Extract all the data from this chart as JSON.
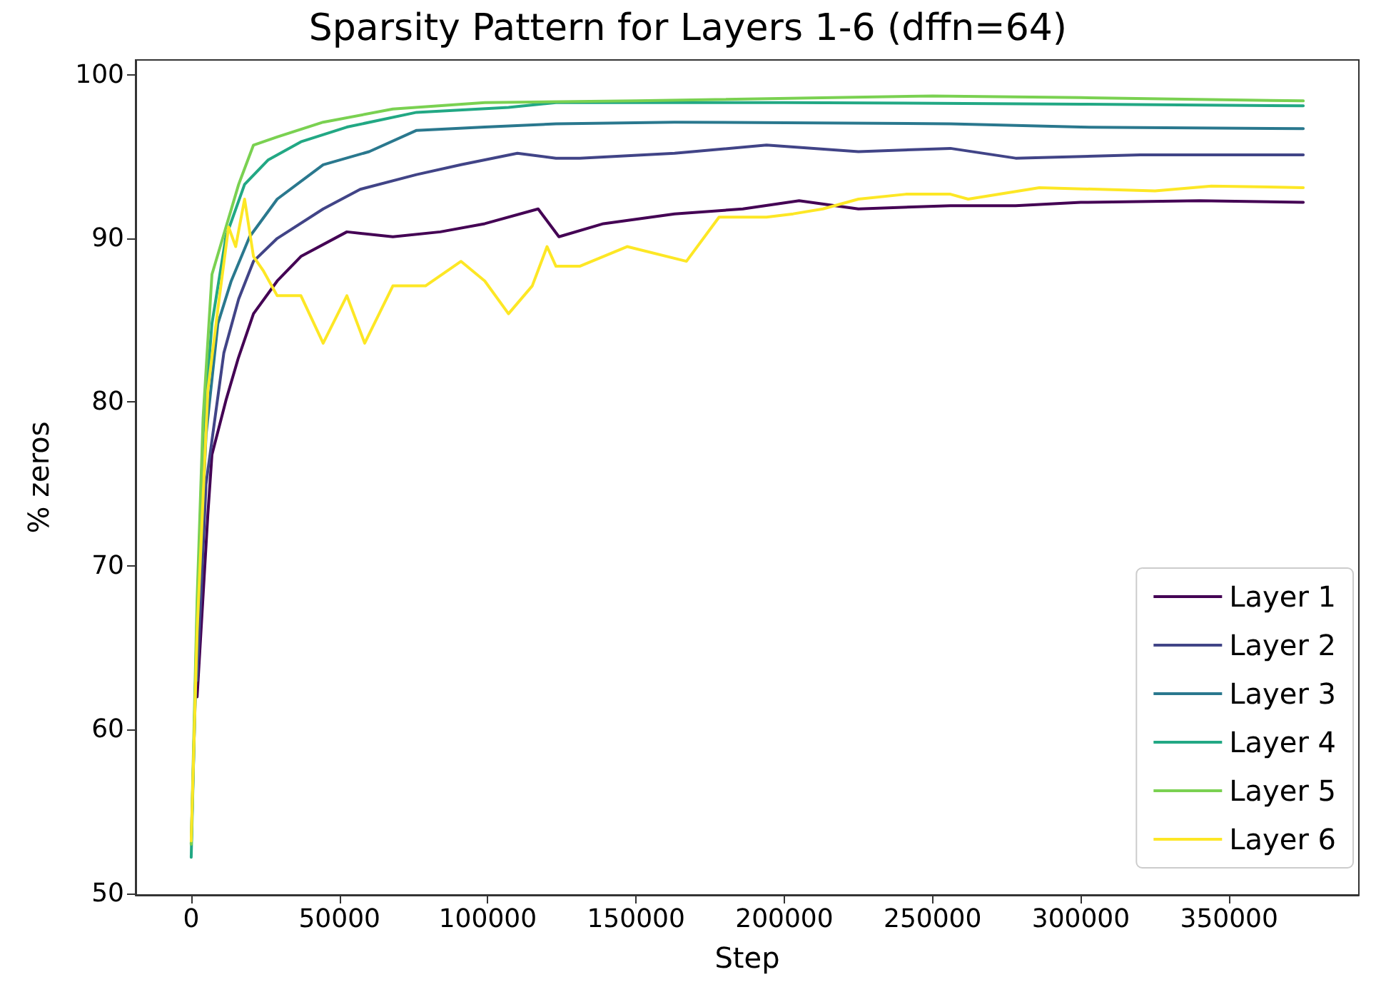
{
  "chart_data": {
    "type": "line",
    "title": "Sparsity Pattern for Layers 1-6 (dffn=64)",
    "xlabel": "Step",
    "ylabel": "% zeros",
    "xlim": [
      -18750,
      393750
    ],
    "xticks": [
      0,
      50000,
      100000,
      150000,
      200000,
      250000,
      300000,
      350000
    ],
    "ylim": [
      49.9,
      100.9
    ],
    "yticks": [
      50,
      60,
      70,
      80,
      90,
      100
    ],
    "grid": false,
    "legend": "bottom right",
    "marker": "none",
    "line_style": "solid",
    "series": [
      {
        "name": "Layer 1",
        "color": "#440154",
        "x": [
          2000,
          5600,
          7000,
          11700,
          15900,
          21000,
          29000,
          37000,
          52500,
          68000,
          84000,
          99000,
          117000,
          124000,
          139000,
          163000,
          186000,
          205000,
          225000,
          256000,
          278000,
          300000,
          340000,
          375000
        ],
        "values": [
          62,
          73.1,
          76.8,
          80.1,
          82.7,
          85.4,
          87.4,
          88.9,
          90.4,
          90.1,
          90.4,
          90.9,
          91.8,
          90.1,
          90.9,
          91.5,
          91.8,
          92.3,
          91.8,
          92.0,
          92.0,
          92.2,
          92.3,
          92.2
        ]
      },
      {
        "name": "Layer 2",
        "color": "#414487",
        "x": [
          2000,
          5000,
          11000,
          16000,
          21000,
          29000,
          44500,
          57000,
          76000,
          91000,
          110000,
          123000,
          131000,
          163000,
          194000,
          225000,
          256000,
          278000,
          320000,
          375000
        ],
        "values": [
          63,
          75,
          83.0,
          86.3,
          88.6,
          90.0,
          91.8,
          93.0,
          93.9,
          94.5,
          95.2,
          94.9,
          94.9,
          95.2,
          95.7,
          95.3,
          95.5,
          94.9,
          95.1,
          95.1
        ]
      },
      {
        "name": "Layer 3",
        "color": "#2a788e",
        "x": [
          0,
          2000,
          5000,
          9000,
          13500,
          19700,
          29000,
          44500,
          60000,
          76000,
          99000,
          123000,
          163000,
          256000,
          300000,
          375000
        ],
        "values": [
          53,
          66,
          78,
          84.8,
          87.4,
          90.1,
          92.4,
          94.5,
          95.3,
          96.6,
          96.8,
          97.0,
          97.1,
          97.0,
          96.8,
          96.7
        ]
      },
      {
        "name": "Layer 4",
        "color": "#22a884",
        "x": [
          0,
          2000,
          4000,
          7000,
          11700,
          18000,
          26000,
          37000,
          52500,
          76000,
          107000,
          123000,
          200000,
          300000,
          375000
        ],
        "values": [
          52.2,
          67,
          78,
          84.8,
          90.1,
          93.3,
          94.8,
          95.9,
          96.8,
          97.7,
          98.0,
          98.3,
          98.3,
          98.2,
          98.1
        ]
      },
      {
        "name": "Layer 5",
        "color": "#7ad151",
        "x": [
          0,
          2000,
          4000,
          7000,
          16000,
          21000,
          29000,
          44500,
          68000,
          99000,
          150000,
          250000,
          300000,
          375000
        ],
        "values": [
          53,
          68,
          79,
          87.8,
          93.3,
          95.7,
          96.2,
          97.1,
          97.9,
          98.3,
          98.4,
          98.7,
          98.6,
          98.4
        ]
      },
      {
        "name": "Layer 6",
        "color": "#fde725",
        "x": [
          0,
          2000,
          5600,
          9000,
          12600,
          15000,
          18000,
          21000,
          24400,
          29000,
          37000,
          44500,
          52500,
          58500,
          68000,
          79000,
          91000,
          99000,
          107000,
          115000,
          120000,
          123000,
          131000,
          147000,
          167000,
          178000,
          194000,
          203000,
          213000,
          225000,
          241000,
          256000,
          262000,
          286000,
          325000,
          344000,
          375000
        ],
        "values": [
          53.2,
          66,
          80.7,
          85.7,
          90.7,
          89.5,
          92.4,
          88.9,
          88.0,
          86.5,
          86.5,
          83.6,
          86.5,
          83.6,
          87.1,
          87.1,
          88.6,
          87.4,
          85.4,
          87.1,
          89.5,
          88.3,
          88.3,
          89.5,
          88.6,
          91.3,
          91.3,
          91.5,
          91.8,
          92.4,
          92.7,
          92.7,
          92.4,
          93.1,
          92.9,
          93.2,
          93.1
        ]
      }
    ]
  }
}
